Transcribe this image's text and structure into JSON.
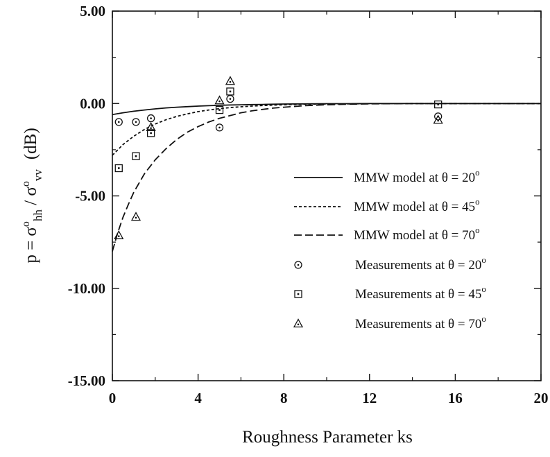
{
  "chart_data": {
    "type": "scatter",
    "xlabel": "Roughness Parameter ks",
    "ylabel": "p = σ°hh / σ°vv (dB)",
    "ylabel_parts": {
      "prefix": "p = σ",
      "sup1": "o",
      "sub1": "hh",
      "mid": " / σ",
      "sup2": "o",
      "sub2": "vv",
      "suffix": "(dB)"
    },
    "xlim": [
      0,
      20
    ],
    "ylim": [
      -15,
      5
    ],
    "xticks": [
      "0",
      "4",
      "8",
      "12",
      "16",
      "20"
    ],
    "yticks": [
      "5.00",
      "0.00",
      "-5.00",
      "-10.00",
      "-15.00"
    ],
    "grid": false,
    "legend_position": "right",
    "series": [
      {
        "name": "MMW model at θ = 20°",
        "label_text": "MMW model at θ = 20",
        "kind": "line",
        "line_style": "solid",
        "x": [
          0,
          0.5,
          1,
          1.5,
          2,
          2.5,
          3,
          3.5,
          4,
          4.5,
          5,
          5.5,
          6,
          6.5,
          7,
          7.5,
          8,
          9,
          10,
          11,
          12,
          14,
          16,
          18,
          20
        ],
        "y": [
          -0.6,
          -0.5,
          -0.42,
          -0.35,
          -0.29,
          -0.24,
          -0.2,
          -0.17,
          -0.14,
          -0.12,
          -0.1,
          -0.08,
          -0.07,
          -0.06,
          -0.05,
          -0.04,
          -0.03,
          -0.02,
          -0.01,
          -0.01,
          0,
          0,
          0,
          0,
          0
        ]
      },
      {
        "name": "MMW model at θ = 45°",
        "label_text": "MMW model at θ = 45",
        "kind": "line",
        "line_style": "dotted",
        "x": [
          0,
          0.5,
          1,
          1.5,
          2,
          2.5,
          3,
          3.5,
          4,
          4.5,
          5,
          5.5,
          6,
          6.5,
          7,
          7.5,
          8,
          9,
          10,
          11,
          12,
          14,
          16,
          18,
          20
        ],
        "y": [
          -2.8,
          -2.22,
          -1.77,
          -1.4,
          -1.11,
          -0.88,
          -0.7,
          -0.56,
          -0.44,
          -0.35,
          -0.28,
          -0.22,
          -0.18,
          -0.14,
          -0.11,
          -0.09,
          -0.07,
          -0.04,
          -0.03,
          -0.02,
          -0.01,
          0,
          0,
          0,
          0
        ]
      },
      {
        "name": "MMW model at θ = 70°",
        "label_text": "MMW model at θ = 70",
        "kind": "line",
        "line_style": "dashed",
        "x": [
          0,
          0.25,
          0.5,
          0.75,
          1,
          1.5,
          2,
          2.5,
          3,
          3.5,
          4,
          4.5,
          5,
          5.5,
          6,
          6.5,
          7,
          7.5,
          8,
          9,
          10,
          11,
          12,
          14,
          16,
          18,
          20
        ],
        "y": [
          -8.0,
          -7.0,
          -6.15,
          -5.45,
          -4.8,
          -3.8,
          -3.05,
          -2.45,
          -1.95,
          -1.55,
          -1.25,
          -1.0,
          -0.8,
          -0.65,
          -0.5,
          -0.4,
          -0.32,
          -0.25,
          -0.2,
          -0.12,
          -0.07,
          -0.04,
          -0.02,
          0,
          0,
          0,
          0
        ]
      },
      {
        "name": "Measurements at θ = 20°",
        "label_text": "Measurements at θ = 20",
        "kind": "points",
        "marker": "circle",
        "x": [
          0.3,
          1.1,
          1.8,
          5.0,
          5.5,
          15.2
        ],
        "y": [
          -1.0,
          -1.0,
          -0.8,
          -1.3,
          0.25,
          -0.7
        ]
      },
      {
        "name": "Measurements at θ = 45°",
        "label_text": "Measurements at θ = 45",
        "kind": "points",
        "marker": "square",
        "x": [
          0.3,
          1.1,
          1.8,
          5.0,
          5.5,
          15.2
        ],
        "y": [
          -3.5,
          -2.85,
          -1.6,
          -0.35,
          0.65,
          -0.05
        ]
      },
      {
        "name": "Measurements at θ = 70°",
        "label_text": "Measurements at θ = 70",
        "kind": "points",
        "marker": "triangle",
        "x": [
          0.3,
          1.1,
          1.8,
          5.0,
          5.5,
          15.2
        ],
        "y": [
          -7.15,
          -6.15,
          -1.3,
          0.15,
          1.2,
          -0.9
        ]
      }
    ],
    "degree_symbol": "o"
  }
}
